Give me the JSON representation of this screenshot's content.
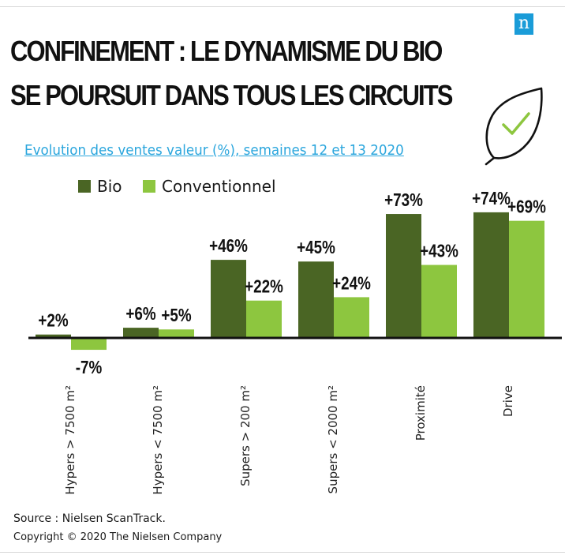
{
  "title_line1": "CONFINEMENT : LE DYNAMISME DU BIO",
  "title_line2": "SE POURSUIT DANS TOUS LES CIRCUITS",
  "logo_letter": "n",
  "source": "Source : Nielsen ScanTrack.",
  "copyright": "Copyright © 2020 The Nielsen Company",
  "colors": {
    "bio": "#4a6524",
    "conventionnel": "#8dc63f",
    "logo": "#1a9cd8",
    "subtitle": "#2ba6dd"
  },
  "icons": {
    "brand": "nielsen-logo-icon",
    "leaf": "leaf-checkmark-icon"
  },
  "chart_data": {
    "type": "bar",
    "title": "Evolution des ventes valeur (%), semaines 12 et 13 2020",
    "xlabel": "",
    "ylabel": "",
    "grid": false,
    "legend_position": "top-left",
    "categories": [
      "Hypers > 7500 m²",
      "Hypers < 7500 m²",
      "Supers > 200 m²",
      "Supers < 2000 m²",
      "Proximité",
      "Drive"
    ],
    "series": [
      {
        "name": "Bio",
        "values": [
          2,
          6,
          46,
          45,
          73,
          74
        ],
        "labels": [
          "+2%",
          "+6%",
          "+46%",
          "+45%",
          "+73%",
          "+74%"
        ]
      },
      {
        "name": "Conventionnel",
        "values": [
          -7,
          5,
          22,
          24,
          43,
          69
        ],
        "labels": [
          "-7%",
          "+5%",
          "+22%",
          "+24%",
          "+43%",
          "+69%"
        ]
      }
    ]
  }
}
